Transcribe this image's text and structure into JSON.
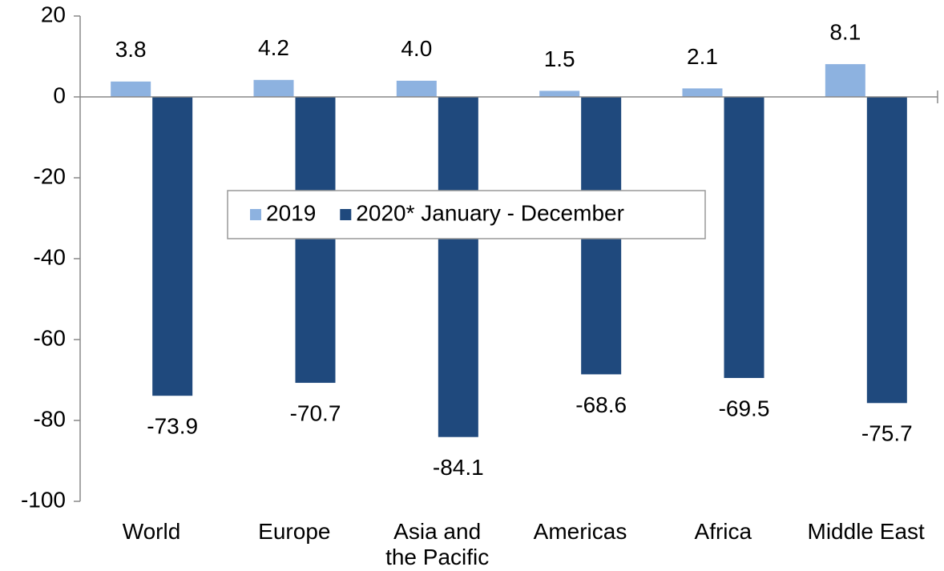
{
  "chart_data": {
    "type": "bar",
    "categories": [
      "World",
      "Europe",
      "Asia and\nthe Pacific",
      "Americas",
      "Africa",
      "Middle East"
    ],
    "series": [
      {
        "name": "2019",
        "color": "#8db2e0",
        "values": [
          3.8,
          4.2,
          4.0,
          1.5,
          2.1,
          8.1
        ],
        "value_labels": [
          "3.8",
          "4.2",
          "4.0",
          "1.5",
          "2.1",
          "8.1"
        ]
      },
      {
        "name": "2020* January - December",
        "color": "#1f497d",
        "values": [
          -73.9,
          -70.7,
          -84.1,
          -68.6,
          -69.5,
          -75.7
        ]
      }
    ],
    "ylim": [
      -100,
      20
    ],
    "yticks": [
      -100,
      -80,
      -60,
      -40,
      -20,
      0,
      20
    ],
    "legend": "center"
  }
}
